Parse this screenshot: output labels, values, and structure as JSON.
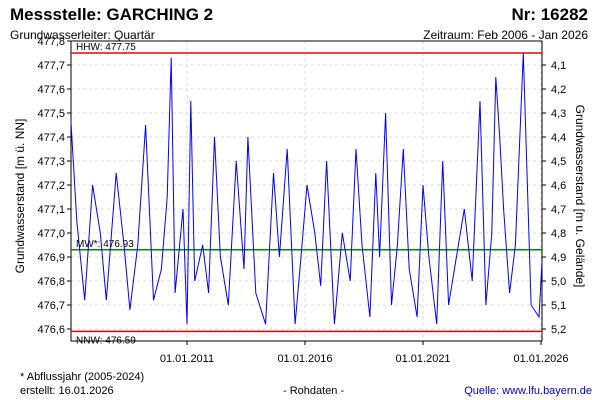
{
  "header": {
    "title": "Messstelle: GARCHING 2",
    "number": "Nr: 16282",
    "aquifer": "Grundwasserleiter: Quartär",
    "period": "Zeitraum: Feb 2006 - Jan 2026"
  },
  "footer": {
    "note": "* Abflussjahr (2005-2024)",
    "created": "erstellt:  16.01.2026",
    "raw": "- Rohdaten -",
    "source": "Quelle: www.lfu.bayern.de"
  },
  "chart_data": {
    "type": "line",
    "ylabel": "Grundwasserstand [m ü. NN]",
    "y2label": "Grundwasserstand [m u. Gelände]",
    "ylim": [
      476.55,
      477.8
    ],
    "yticks": [
      "476,6",
      "476,7",
      "476,8",
      "476,9",
      "477,0",
      "477,1",
      "477,2",
      "477,3",
      "477,4",
      "477,5",
      "477,6",
      "477,7",
      "477,8"
    ],
    "y2ticks": [
      {
        "value": 4.1,
        "label": "4,1"
      },
      {
        "value": 4.2,
        "label": "4,2"
      },
      {
        "value": 4.3,
        "label": "4,3"
      },
      {
        "value": 4.4,
        "label": "4,4"
      },
      {
        "value": 4.5,
        "label": "4,5"
      },
      {
        "value": 4.6,
        "label": "4,6"
      },
      {
        "value": 4.7,
        "label": "4,7"
      },
      {
        "value": 4.8,
        "label": "4,8"
      },
      {
        "value": 4.9,
        "label": "4,9"
      },
      {
        "value": 5.0,
        "label": "5,0"
      },
      {
        "value": 5.1,
        "label": "5,1"
      },
      {
        "value": 5.2,
        "label": "5,2"
      }
    ],
    "xlim": [
      "2006-02-01",
      "2026-01-16"
    ],
    "xticks": [
      {
        "date": "2011-01-01",
        "label": "01.01.2011"
      },
      {
        "date": "2016-01-01",
        "label": "01.01.2016"
      },
      {
        "date": "2021-01-01",
        "label": "01.01.2021"
      },
      {
        "date": "2026-01-01",
        "label": "01.01.2026"
      }
    ],
    "grid": true,
    "reference_lines": [
      {
        "label": "HHW: 477.75",
        "value": 477.75,
        "color": "#ee0000"
      },
      {
        "label": "MW*: 476.93",
        "value": 476.93,
        "color": "#008800"
      },
      {
        "label": "NNW: 476.59",
        "value": 476.59,
        "color": "#ee0000"
      }
    ],
    "series": [
      {
        "color": "#0000ff",
        "x": [
          "2006-02-01",
          "2006-05-01",
          "2006-09-01",
          "2007-01-01",
          "2007-05-01",
          "2007-08-01",
          "2008-01-01",
          "2008-05-01",
          "2008-08-01",
          "2008-12-01",
          "2009-04-01",
          "2009-08-01",
          "2009-12-01",
          "2010-03-01",
          "2010-05-01",
          "2010-07-01",
          "2010-11-01",
          "2011-01-01",
          "2011-03-01",
          "2011-05-01",
          "2011-09-01",
          "2011-12-01",
          "2012-03-01",
          "2012-06-01",
          "2012-10-01",
          "2013-02-01",
          "2013-06-01",
          "2013-08-01",
          "2013-12-01",
          "2014-05-01",
          "2014-09-01",
          "2014-12-01",
          "2015-04-01",
          "2015-08-01",
          "2015-11-01",
          "2016-02-01",
          "2016-06-01",
          "2016-09-01",
          "2016-12-01",
          "2017-04-01",
          "2017-08-01",
          "2017-12-01",
          "2018-03-01",
          "2018-06-01",
          "2018-10-01",
          "2019-01-01",
          "2019-03-01",
          "2019-06-01",
          "2019-09-01",
          "2019-12-01",
          "2020-03-01",
          "2020-06-01",
          "2020-10-01",
          "2021-01-01",
          "2021-04-01",
          "2021-08-01",
          "2021-11-01",
          "2022-02-01",
          "2022-06-01",
          "2022-10-01",
          "2023-02-01",
          "2023-06-01",
          "2023-09-01",
          "2023-12-01",
          "2024-02-01",
          "2024-04-01",
          "2024-06-01",
          "2024-09-01",
          "2024-12-01",
          "2025-04-01",
          "2025-08-01",
          "2025-12-01",
          "2026-01-16"
        ],
        "y": [
          477.46,
          477.05,
          476.72,
          477.2,
          477.0,
          476.72,
          477.25,
          476.95,
          476.68,
          476.95,
          477.45,
          476.72,
          476.85,
          477.15,
          477.73,
          476.75,
          477.1,
          476.62,
          477.55,
          476.8,
          476.95,
          476.75,
          477.4,
          476.9,
          476.7,
          477.3,
          476.85,
          477.4,
          476.75,
          476.62,
          477.25,
          476.9,
          477.35,
          476.62,
          476.9,
          477.2,
          477.0,
          476.78,
          477.3,
          476.62,
          477.0,
          476.8,
          477.35,
          476.95,
          476.65,
          477.25,
          476.9,
          477.5,
          476.7,
          476.95,
          477.35,
          476.85,
          476.65,
          477.2,
          476.9,
          476.62,
          477.3,
          476.7,
          476.9,
          477.1,
          476.8,
          477.55,
          476.7,
          477.0,
          477.65,
          477.4,
          477.1,
          476.75,
          476.95,
          477.75,
          476.7,
          476.65,
          476.88
        ]
      }
    ]
  }
}
